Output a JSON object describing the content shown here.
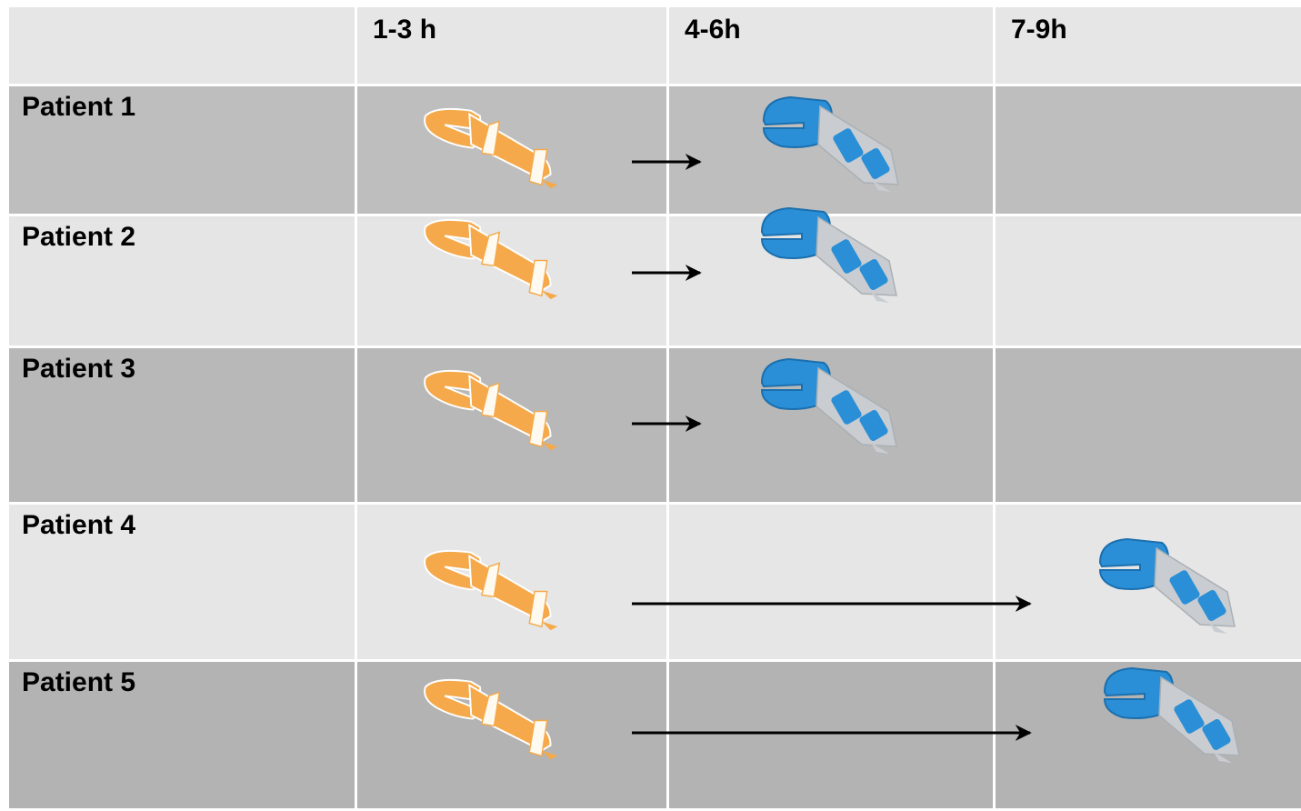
{
  "header": {
    "columns": [
      "1-3 h",
      "4-6h",
      "7-9h"
    ]
  },
  "rows": [
    {
      "label": "Patient 1"
    },
    {
      "label": "Patient 2"
    },
    {
      "label": "Patient 3"
    },
    {
      "label": "Patient 4"
    },
    {
      "label": "Patient 5"
    }
  ]
}
